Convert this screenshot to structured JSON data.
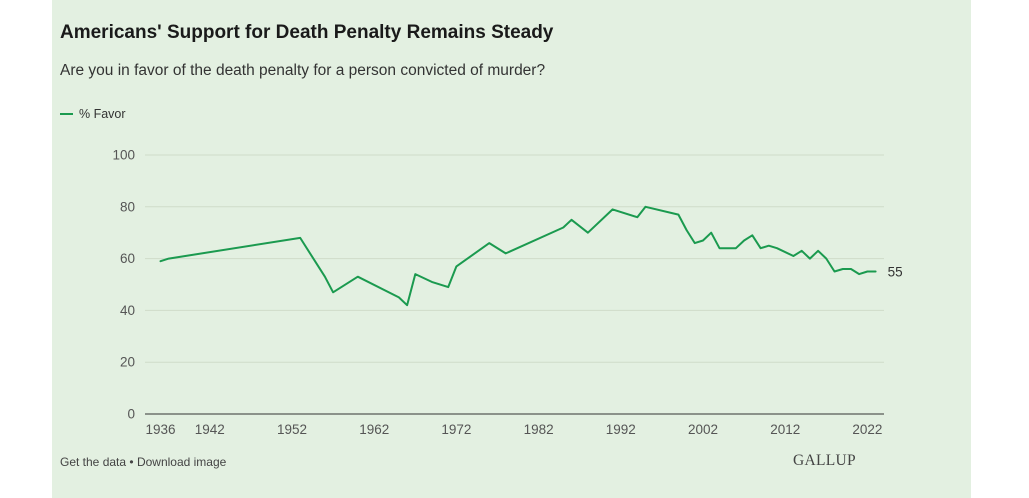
{
  "header": {
    "title": "Americans' Support for Death Penalty Remains Steady",
    "subtitle": "Are you in favor of the death penalty for a person convicted of murder?"
  },
  "legend": {
    "label": "% Favor"
  },
  "footer": {
    "get_data_label": "Get the data",
    "separator": "•",
    "download_label": "Download image",
    "brand": "GALLUP"
  },
  "colors": {
    "background_panel": "#e3f0e1",
    "series": "#1b9a4f",
    "grid": "#cfdcc9",
    "axis": "#555555"
  },
  "chart_data": {
    "type": "line",
    "title": "Americans' Support for Death Penalty Remains Steady",
    "subtitle": "Are you in favor of the death penalty for a person convicted of murder?",
    "xlabel": "",
    "ylabel": "",
    "ylim": [
      0,
      100
    ],
    "xlim": [
      1935,
      2024
    ],
    "yticks": [
      0,
      20,
      40,
      60,
      80,
      100
    ],
    "xticks": [
      1936,
      1942,
      1952,
      1962,
      1972,
      1982,
      1992,
      2002,
      2012,
      2022
    ],
    "grid": true,
    "legend_position": "top-left",
    "end_label": "55",
    "series": [
      {
        "name": "% Favor",
        "x": [
          1936,
          1937,
          1953,
          1956,
          1957,
          1960,
          1965,
          1966,
          1967,
          1969,
          1971,
          1972,
          1976,
          1978,
          1985,
          1986,
          1988,
          1991,
          1994,
          1995,
          1999,
          2000,
          2001,
          2002,
          2003,
          2004,
          2006,
          2007,
          2008,
          2009,
          2010,
          2011,
          2013,
          2014,
          2015,
          2016,
          2017,
          2018,
          2019,
          2020,
          2021,
          2022,
          2023
        ],
        "values": [
          59,
          60,
          68,
          53,
          47,
          53,
          45,
          42,
          54,
          51,
          49,
          57,
          66,
          62,
          72,
          75,
          70,
          79,
          76,
          80,
          77,
          71,
          66,
          67,
          70,
          64,
          64,
          67,
          69,
          64,
          65,
          64,
          61,
          63,
          60,
          63,
          60,
          55,
          56,
          56,
          54,
          55,
          55
        ]
      }
    ]
  }
}
